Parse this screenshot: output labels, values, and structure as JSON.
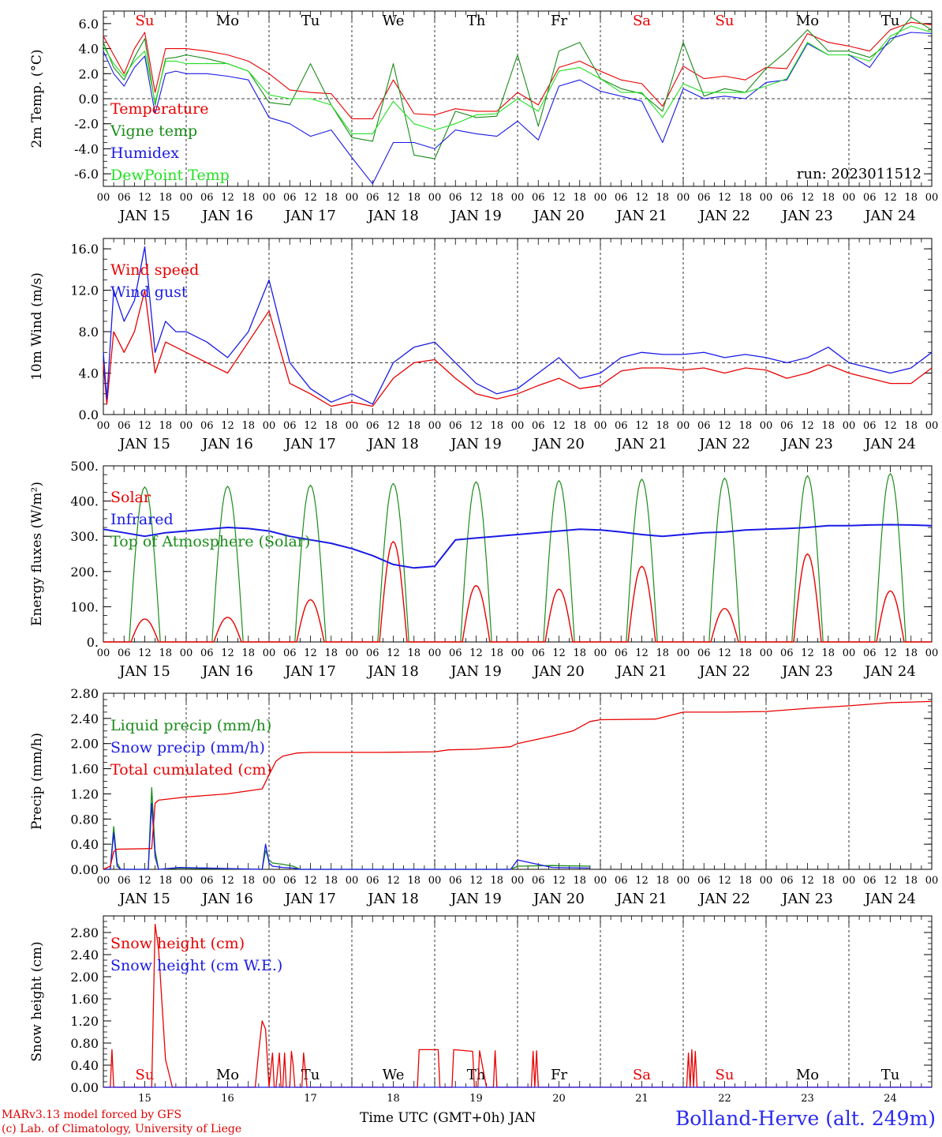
{
  "run_label": "run: 2023011512",
  "colors": {
    "red": "#e80000",
    "green": "#1a8c1a",
    "blue": "#1a1ae6",
    "lightgreen": "#22e022"
  },
  "days": {
    "weekdays": [
      "Su",
      "Mo",
      "Tu",
      "We",
      "Th",
      "Fr",
      "Sa",
      "Su",
      "Mo",
      "Tu"
    ],
    "weekday_colors": [
      "red",
      "black",
      "black",
      "black",
      "black",
      "black",
      "red",
      "red",
      "black",
      "black"
    ],
    "dates": [
      "JAN 15",
      "JAN 16",
      "JAN 17",
      "JAN 18",
      "JAN 19",
      "JAN 20",
      "JAN 21",
      "JAN 22",
      "JAN 23",
      "JAN 24"
    ],
    "day_numbers": [
      "15",
      "16",
      "17",
      "18",
      "19",
      "20",
      "21",
      "22",
      "23",
      "24"
    ],
    "hour_ticks": [
      "00",
      "06",
      "12",
      "18"
    ],
    "final_tick": "00"
  },
  "footer": {
    "credit_line1": "MARv3.13 model forced by GFS",
    "credit_line2": "(c) Lab. of Climatology, University of Liege",
    "xlabel": "Time UTC (GMT+0h) JAN",
    "station": "Bolland-Herve (alt. 249m)"
  },
  "chart_data": [
    {
      "type": "line",
      "ylabel": "2m Temp. (°C)",
      "ylim": [
        -7,
        7
      ],
      "yticks": [
        "-6.0",
        "-4.0",
        "-2.0",
        "0.0",
        "2.0",
        "4.0",
        "6.0"
      ],
      "ytick_values": [
        -6,
        -4,
        -2,
        0,
        2,
        4,
        6
      ],
      "refline": 0,
      "x_unit": "hours since JAN 15 00 UTC",
      "x": [
        0,
        3,
        6,
        9,
        12,
        15,
        18,
        21,
        24,
        30,
        36,
        42,
        48,
        54,
        60,
        66,
        72,
        78,
        84,
        90,
        96,
        102,
        108,
        114,
        120,
        126,
        132,
        138,
        144,
        150,
        156,
        162,
        168,
        174,
        180,
        186,
        192,
        198,
        204,
        210,
        216,
        222,
        228,
        234,
        240
      ],
      "series": [
        {
          "name": "Temperature",
          "color": "red",
          "values": [
            5,
            3.5,
            2,
            4,
            5.3,
            0.5,
            4,
            4,
            4,
            3.8,
            3.5,
            3,
            2,
            0.7,
            0.5,
            0.4,
            -1.6,
            -1.6,
            1.5,
            -1.2,
            -1.3,
            -0.8,
            -1.0,
            -1.0,
            0.5,
            -0.5,
            2.5,
            3.0,
            2.2,
            1.5,
            1.2,
            -0.6,
            2.6,
            1.6,
            1.8,
            1.5,
            2.5,
            2.4,
            5.2,
            4.5,
            4.2,
            3.8,
            5.5,
            6.1,
            5.9
          ]
        },
        {
          "name": "Vigne temp",
          "color": "green",
          "values": [
            4.5,
            2.5,
            1.5,
            3.3,
            4.8,
            -0.5,
            3.2,
            3.3,
            3.5,
            3.2,
            2.8,
            2.2,
            -0.3,
            -0.5,
            2.8,
            -0.5,
            -3.1,
            -3.4,
            2.8,
            -4.5,
            -4.8,
            -1.0,
            -1.5,
            -1.4,
            3.5,
            -2.2,
            3.8,
            4.5,
            1.6,
            0.8,
            0.4,
            -1.0,
            4.5,
            0.2,
            0.8,
            0.5,
            2.4,
            3.8,
            5.5,
            3.8,
            3.8,
            3.3,
            4.5,
            6.5,
            5.5
          ]
        },
        {
          "name": "Humidex",
          "color": "blue",
          "values": [
            3.8,
            2.0,
            1.0,
            2.5,
            3.4,
            -1.2,
            2.0,
            2.2,
            2.0,
            2.0,
            1.8,
            1.5,
            -1.5,
            -2,
            -3.0,
            -2.5,
            -4.7,
            -6.8,
            -3.5,
            -3.5,
            -4.0,
            -2.5,
            -2.8,
            -3.0,
            -1.8,
            -3.3,
            1.0,
            1.5,
            0.6,
            0.2,
            -0.2,
            -3.5,
            0.8,
            0.0,
            0.2,
            0.0,
            1.3,
            1.5,
            4.4,
            3.5,
            3.5,
            2.5,
            4.8,
            5.3,
            5.2
          ]
        },
        {
          "name": "DewPoint Temp",
          "color": "lightgreen",
          "values": [
            4.2,
            2.8,
            1.8,
            3.0,
            3.8,
            -0.3,
            3.0,
            3.0,
            2.8,
            2.8,
            2.8,
            2.2,
            0.3,
            0,
            0.0,
            -0.5,
            -2.8,
            -2.8,
            -0.2,
            -2.0,
            -2.5,
            -2.0,
            -1.3,
            -1.2,
            0.0,
            -1.0,
            2.2,
            2.5,
            1.6,
            0.5,
            0.5,
            -1.5,
            1.2,
            0.5,
            0.5,
            0.5,
            1.0,
            1.6,
            4.5,
            3.5,
            3.5,
            3.0,
            5.0,
            5.8,
            5.3
          ]
        }
      ]
    },
    {
      "type": "line",
      "ylabel": "10m Wind (m/s)",
      "ylim": [
        0,
        17
      ],
      "yticks": [
        "0.0",
        "4.0",
        "8.0",
        "12.0",
        "16.0"
      ],
      "ytick_values": [
        0,
        4,
        8,
        12,
        16
      ],
      "refline": 5,
      "x_unit": "hours since JAN 15 00 UTC",
      "x": [
        0,
        1,
        3,
        6,
        9,
        12,
        15,
        18,
        21,
        24,
        30,
        36,
        42,
        48,
        54,
        60,
        66,
        72,
        78,
        84,
        90,
        96,
        102,
        108,
        114,
        120,
        126,
        132,
        138,
        144,
        150,
        156,
        162,
        168,
        174,
        180,
        186,
        192,
        198,
        204,
        210,
        216,
        222,
        228,
        234,
        240
      ],
      "series": [
        {
          "name": "Wind speed",
          "color": "red",
          "values": [
            5,
            1,
            8,
            6,
            8,
            12,
            4,
            7,
            6.5,
            6,
            5,
            4,
            7,
            10,
            3,
            2,
            0.8,
            1.2,
            0.8,
            3.5,
            5,
            5.3,
            3.5,
            2,
            1.5,
            2,
            2.8,
            3.5,
            2.5,
            2.8,
            4.2,
            4.5,
            4.5,
            4.3,
            4.5,
            4.0,
            4.5,
            4.3,
            3.5,
            4.0,
            4.8,
            4.0,
            3.5,
            3.0,
            3.0,
            4.5
          ]
        },
        {
          "name": "Wind gust",
          "color": "blue",
          "values": [
            6,
            1.5,
            12,
            9,
            11,
            16.2,
            6,
            9,
            8,
            8,
            7,
            5.5,
            8,
            13,
            5,
            2.5,
            1.2,
            2.0,
            1.0,
            5,
            6.5,
            7.0,
            5,
            3,
            2,
            2.5,
            4,
            5.5,
            3.5,
            4,
            5.5,
            6.0,
            5.8,
            5.8,
            6.0,
            5.5,
            5.8,
            5.5,
            5.0,
            5.5,
            6.5,
            5.0,
            4.5,
            4.0,
            4.5,
            6.0
          ]
        }
      ]
    },
    {
      "type": "line",
      "ylabel": "Energy fluxes (W/m²)",
      "ylim": [
        0,
        500
      ],
      "yticks": [
        "0.",
        "100.",
        "200.",
        "300.",
        "400.",
        "500."
      ],
      "ytick_values": [
        0,
        100,
        200,
        300,
        400,
        500
      ],
      "x_unit": "hours since JAN 15 00 UTC",
      "x_range": [
        0,
        240
      ],
      "daily_peaks": {
        "top_of_atmosphere": [
          440,
          442,
          445,
          450,
          455,
          458,
          462,
          465,
          472,
          478
        ],
        "solar": [
          65,
          70,
          120,
          285,
          160,
          150,
          215,
          95,
          250,
          145
        ]
      },
      "series": [
        {
          "name": "Solar",
          "color": "red"
        },
        {
          "name": "Infrared",
          "color": "blue",
          "x": [
            0,
            6,
            12,
            18,
            24,
            30,
            36,
            42,
            48,
            54,
            60,
            66,
            72,
            78,
            84,
            90,
            96,
            102,
            108,
            114,
            120,
            126,
            132,
            138,
            144,
            150,
            156,
            162,
            168,
            174,
            180,
            186,
            192,
            198,
            204,
            210,
            216,
            222,
            228,
            234,
            240
          ],
          "values": [
            320,
            310,
            300,
            310,
            315,
            320,
            325,
            322,
            315,
            300,
            290,
            280,
            265,
            245,
            220,
            210,
            215,
            290,
            295,
            300,
            305,
            310,
            315,
            320,
            318,
            312,
            305,
            300,
            305,
            310,
            312,
            318,
            320,
            322,
            325,
            330,
            330,
            332,
            333,
            332,
            330
          ]
        },
        {
          "name": "Top of Atmosphere (Solar)",
          "color": "green"
        }
      ]
    },
    {
      "type": "line",
      "ylabel": "Precip (mm/h)",
      "ylim": [
        0,
        2.8
      ],
      "yticks": [
        "0.00",
        "0.40",
        "0.80",
        "1.20",
        "1.60",
        "2.00",
        "2.40",
        "2.80"
      ],
      "ytick_values": [
        0,
        0.4,
        0.8,
        1.2,
        1.6,
        2.0,
        2.4,
        2.8
      ],
      "x_unit": "hours since JAN 15 00 UTC",
      "x_range": [
        0,
        240
      ],
      "series": [
        {
          "name": "Liquid precip (mm/h)",
          "color": "green",
          "x": [
            0,
            2,
            3,
            4,
            5,
            13,
            14,
            15,
            16,
            22,
            46,
            47,
            48,
            49,
            52,
            55,
            57,
            118,
            120,
            130,
            141
          ],
          "values": [
            0,
            0,
            0.68,
            0.1,
            0,
            0,
            1.3,
            0.3,
            0,
            0.02,
            0,
            0.3,
            0.15,
            0.1,
            0.08,
            0.05,
            0,
            0,
            0.05,
            0.06,
            0.05
          ]
        },
        {
          "name": "Snow precip (mm/h)",
          "color": "blue",
          "x": [
            0,
            2,
            3,
            4,
            5,
            13,
            14,
            15,
            16,
            22,
            46,
            47,
            48,
            49,
            52,
            55,
            57,
            118,
            120,
            130,
            141
          ],
          "values": [
            0,
            0,
            0.58,
            0.05,
            0,
            0,
            1.05,
            0.2,
            0,
            0.03,
            0,
            0.4,
            0.1,
            0.05,
            0.03,
            0.02,
            0,
            0,
            0.15,
            0.03,
            0.02
          ]
        },
        {
          "name": "Total cumulated (cm)",
          "color": "red",
          "x": [
            0,
            2,
            3,
            4,
            14,
            15,
            16,
            24,
            36,
            46,
            48,
            50,
            52,
            56,
            60,
            80,
            96,
            100,
            108,
            118,
            120,
            130,
            136,
            141,
            144,
            160,
            168,
            180,
            192,
            204,
            216,
            228,
            240
          ],
          "values": [
            0,
            0.05,
            0.28,
            0.32,
            0.33,
            1.05,
            1.1,
            1.15,
            1.2,
            1.28,
            1.5,
            1.72,
            1.8,
            1.85,
            1.86,
            1.86,
            1.87,
            1.9,
            1.91,
            1.95,
            2.0,
            2.12,
            2.2,
            2.35,
            2.38,
            2.39,
            2.5,
            2.5,
            2.51,
            2.56,
            2.6,
            2.65,
            2.67
          ]
        }
      ]
    },
    {
      "type": "line",
      "ylabel": "Snow height (cm)",
      "ylim": [
        0,
        3.1
      ],
      "yticks": [
        "0.00",
        "0.40",
        "0.80",
        "1.20",
        "1.60",
        "2.00",
        "2.40",
        "2.80"
      ],
      "ytick_values": [
        0,
        0.4,
        0.8,
        1.2,
        1.6,
        2.0,
        2.4,
        2.8
      ],
      "x_unit": "hours since JAN 15 00 UTC",
      "x_range": [
        0,
        240
      ],
      "series": [
        {
          "name": "Snow height (cm)",
          "color": "red",
          "x": [
            0,
            2,
            2.5,
            3,
            14,
            15,
            16,
            17,
            18,
            20,
            44,
            45,
            46,
            47,
            48,
            49,
            49.5,
            50,
            51,
            51.5,
            52,
            52.5,
            53,
            54,
            54.5,
            55,
            55.5,
            56,
            57,
            57.5,
            58,
            59,
            59.5,
            60,
            60.5,
            61,
            91,
            91.5,
            97,
            97.5,
            101,
            101.5,
            107,
            107.5,
            108.5,
            109,
            111,
            111.5,
            112,
            113,
            113.5,
            114,
            124,
            124.5,
            125,
            125.5,
            126,
            126.5,
            127,
            127.5,
            169,
            169.5,
            170,
            170.5,
            171,
            171.5,
            172,
            172.5,
            240
          ],
          "values": [
            0,
            0,
            0.68,
            0,
            0,
            2.95,
            2.5,
            1.5,
            0.5,
            0,
            0,
            0.65,
            1.2,
            1.05,
            0,
            0.62,
            0,
            0,
            0.62,
            0,
            0,
            0.62,
            0,
            0,
            0.65,
            0.4,
            0,
            0,
            0,
            0,
            0.62,
            0,
            0,
            0,
            0,
            0,
            0,
            0.68,
            0.68,
            0,
            0,
            0.68,
            0.65,
            0,
            0,
            0.66,
            0,
            0,
            0,
            0,
            0.66,
            0,
            0,
            0.65,
            0,
            0.66,
            0,
            0,
            0,
            0,
            0,
            0.62,
            0,
            0.68,
            0,
            0.65,
            0,
            0,
            0
          ]
        },
        {
          "name": "Snow height (cm W.E.)",
          "color": "blue",
          "x": [
            0,
            240
          ],
          "values": [
            0,
            0
          ]
        }
      ]
    }
  ]
}
